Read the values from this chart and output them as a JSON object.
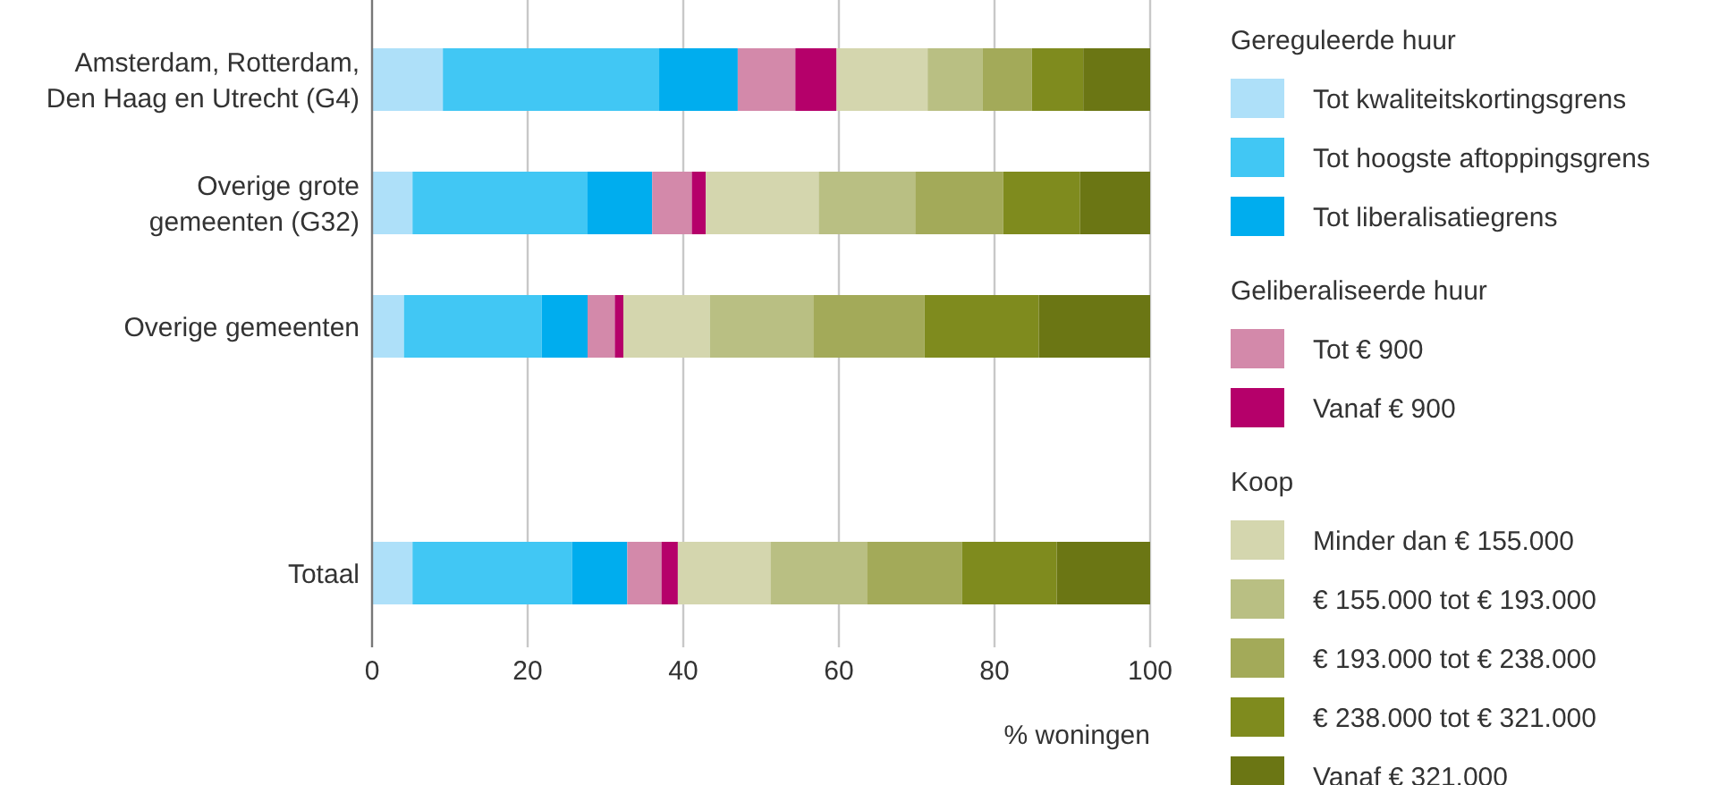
{
  "chart_data": {
    "type": "bar",
    "orientation": "horizontal",
    "stacked": true,
    "categories": [
      "Amsterdam, Rotterdam,\nDen Haag en Utrecht (G4)",
      "Overige grote\ngemeenten (G32)",
      "Overige gemeenten",
      null,
      "Totaal"
    ],
    "series": [
      {
        "name": "Tot kwaliteitskortingsgrens",
        "color": "#aee0f9",
        "values": [
          9.1,
          5.2,
          4.1,
          null,
          5.2
        ]
      },
      {
        "name": "Tot hoogste aftoppingsgrens",
        "color": "#41c7f4",
        "values": [
          27.8,
          22.5,
          17.7,
          null,
          20.5
        ]
      },
      {
        "name": "Tot liberalisatiegrens",
        "color": "#00adee",
        "values": [
          10.1,
          8.3,
          5.9,
          null,
          7.1
        ]
      },
      {
        "name": "Tot € 900",
        "color": "#d389aa",
        "values": [
          7.4,
          5.1,
          3.5,
          null,
          4.4
        ]
      },
      {
        "name": "Vanaf € 900",
        "color": "#b5006a",
        "values": [
          5.3,
          1.8,
          1.1,
          null,
          2.1
        ]
      },
      {
        "name": "Minder dan € 155.000",
        "color": "#d4d6ae",
        "values": [
          11.7,
          14.5,
          11.1,
          null,
          11.9
        ]
      },
      {
        "name": "€ 155.000 tot € 193.000",
        "color": "#b9bf83",
        "values": [
          7.1,
          12.4,
          13.3,
          null,
          12.4
        ]
      },
      {
        "name": "€ 193.000 tot € 238.000",
        "color": "#a3aa59",
        "values": [
          6.3,
          11.3,
          14.3,
          null,
          12.2
        ]
      },
      {
        "name": "€ 238.000 tot € 321.000",
        "color": "#7f8b1e",
        "values": [
          6.6,
          9.9,
          14.7,
          null,
          12.2
        ]
      },
      {
        "name": "Vanaf € 321.000",
        "color": "#6b7614",
        "values": [
          8.6,
          9.0,
          14.3,
          null,
          12.0
        ]
      }
    ],
    "xlim": [
      0,
      100
    ],
    "xticks": [
      0,
      20,
      40,
      60,
      80,
      100
    ],
    "xlabel": "% woningen",
    "grid": "x",
    "legend": "right",
    "annotations": [
      "Gereguleerde huur",
      "Geliberaliseerde huur",
      "Koop"
    ]
  }
}
